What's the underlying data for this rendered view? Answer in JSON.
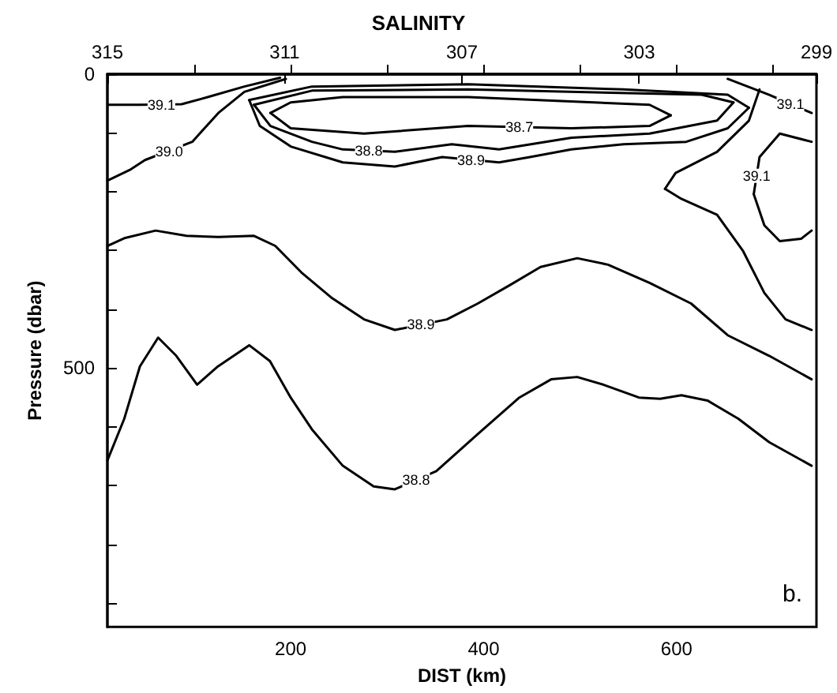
{
  "chart_data": {
    "type": "line",
    "title": "SALINITY",
    "xlabel": "DIST (km)",
    "ylabel": "Pressure (dbar)",
    "xlim": [
      10,
      745
    ],
    "ylim": [
      940,
      0
    ],
    "xticks": [
      {
        "value": 100,
        "label": null
      },
      200,
      {
        "value": 300,
        "label": null
      },
      400,
      {
        "value": 500,
        "label": null
      },
      600,
      {
        "value": 700,
        "label": null
      }
    ],
    "yticks": [
      0,
      {
        "value": 100,
        "label": null
      },
      {
        "value": 200,
        "label": null
      },
      {
        "value": 300,
        "label": null
      },
      {
        "value": 400,
        "label": null
      },
      500,
      {
        "value": 600,
        "label": null
      },
      {
        "value": 700,
        "label": null
      },
      {
        "value": 800,
        "label": null
      },
      {
        "value": 900,
        "label": null
      }
    ],
    "x2lim": [
      315,
      299
    ],
    "x2ticks": [
      315,
      311,
      307,
      303,
      299
    ],
    "grid": false,
    "marker": "none",
    "line_style": "solid",
    "series": [
      {
        "color": "#000000",
        "x": [
          10,
          27.5,
          43.7,
          62.6,
          81.4,
          103,
          124.6,
          157,
          178.5,
          200,
          222,
          254,
          286,
          308,
          351,
          394,
          437,
          470,
          497,
          524,
          561,
          583,
          605,
          632,
          664,
          696,
          740
        ],
        "values": [
          657,
          586,
          497,
          448,
          479,
          528,
          497,
          461,
          488,
          550,
          604,
          666,
          701,
          706,
          675,
          612,
          550,
          519,
          515,
          528,
          550,
          552,
          546,
          555,
          586,
          626,
          666
        ]
      },
      {
        "color": "#000000",
        "x": [
          10,
          27.5,
          60,
          92,
          125,
          162,
          184,
          211,
          243,
          276,
          308,
          362,
          394,
          427,
          459,
          497,
          529,
          572,
          615,
          653,
          696,
          740
        ],
        "values": [
          292,
          279,
          266,
          275,
          277,
          275,
          292,
          337,
          381,
          417,
          435,
          417,
          390,
          359,
          328,
          313,
          324,
          355,
          390,
          444,
          479,
          519
        ]
      },
      {
        "color": "#000000",
        "x": [
          11,
          44,
          87,
          114,
          152,
          189
        ],
        "values": [
          52,
          52,
          51,
          39,
          21,
          6
        ]
      },
      {
        "color": "#000000",
        "x": [
          10,
          33,
          49,
          98,
          125,
          152,
          195
        ],
        "values": [
          181,
          163,
          146,
          115,
          66,
          30,
          8
        ]
      },
      {
        "color": "#000000",
        "x": [
          157,
          168,
          200,
          254,
          308,
          357,
          416,
          448,
          491,
          545,
          610,
          653,
          675
        ],
        "values": [
          44,
          88,
          123,
          150,
          157,
          141,
          150,
          141,
          128,
          119,
          115,
          92,
          57
        ]
      },
      {
        "color": "#000000",
        "x": [
          157,
          222,
          384,
          545,
          653,
          675
        ],
        "values": [
          44,
          21,
          17,
          26,
          35,
          57
        ]
      },
      {
        "color": "#000000",
        "x": [
          162,
          179,
          222,
          254,
          308,
          367,
          416,
          491,
          572,
          642,
          659
        ],
        "values": [
          52,
          88,
          115,
          128,
          132,
          119,
          128,
          108,
          101,
          79,
          48
        ]
      },
      {
        "color": "#000000",
        "x": [
          162,
          222,
          384,
          626,
          659
        ],
        "values": [
          52,
          28,
          26,
          35,
          48
        ]
      },
      {
        "color": "#000000",
        "x": [
          179,
          200,
          276,
          384,
          491,
          572,
          594
        ],
        "values": [
          66,
          92,
          101,
          88,
          92,
          88,
          70
        ]
      },
      {
        "color": "#000000",
        "x": [
          179,
          200,
          254,
          384,
          572,
          594
        ],
        "values": [
          66,
          48,
          39,
          39,
          52,
          70
        ]
      },
      {
        "color": "#000000",
        "x": [
          588,
          599,
          642,
          675,
          686
        ],
        "values": [
          195,
          168,
          132,
          79,
          26
        ]
      },
      {
        "color": "#000000",
        "x": [
          588,
          605,
          642,
          669,
          691,
          713,
          740
        ],
        "values": [
          195,
          212,
          239,
          301,
          372,
          417,
          435
        ]
      },
      {
        "color": "#000000",
        "x": [
          680,
          686,
          707,
          740
        ],
        "values": [
          204,
          141,
          101,
          115
        ]
      },
      {
        "color": "#000000",
        "x": [
          680,
          691,
          707,
          729,
          740
        ],
        "values": [
          204,
          257,
          284,
          280,
          266
        ]
      },
      {
        "color": "#000000",
        "x": [
          653,
          696,
          740
        ],
        "values": [
          8,
          35,
          66
        ]
      }
    ],
    "annotations": [
      {
        "text": "39.1",
        "x": 66,
        "y": 52
      },
      {
        "text": "39.0",
        "x": 74,
        "y": 131
      },
      {
        "text": "38.7",
        "x": 437,
        "y": 90
      },
      {
        "text": "38.8",
        "x": 281,
        "y": 130
      },
      {
        "text": "38.9",
        "x": 387,
        "y": 146
      },
      {
        "text": "38.9",
        "x": 335,
        "y": 426
      },
      {
        "text": "38.8",
        "x": 330,
        "y": 690
      },
      {
        "text": "39.1",
        "x": 683,
        "y": 173
      },
      {
        "text": "39.1",
        "x": 718,
        "y": 51
      },
      "b."
    ]
  }
}
